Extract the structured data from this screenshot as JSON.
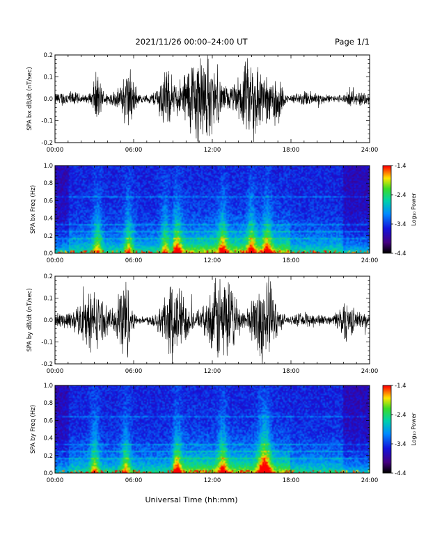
{
  "header": {
    "title": "2021/11/26  00:00–24:00 UT",
    "page": "Page 1/1"
  },
  "footer": {
    "xlabel": "Universal Time (hh:mm)"
  },
  "colors": {
    "trace": "#000000",
    "axis": "#000000",
    "background": "#ffffff"
  },
  "chart_data": [
    {
      "type": "line",
      "ylabel": "SPA bx dB/dt (nT/sec)",
      "xlim": [
        0,
        24
      ],
      "ylim": [
        -0.2,
        0.2
      ],
      "x_tick_labels": [
        "00:00",
        "06:00",
        "12:00",
        "18:00",
        "24:00"
      ],
      "y_tick_labels": [
        "0.2",
        "0.1",
        "0.0",
        "-0.1",
        "-0.2"
      ],
      "series": [
        {
          "x_unit": "hours UT",
          "bursts": [
            {
              "center": 3.2,
              "width": 0.35,
              "amp": 0.08
            },
            {
              "center": 5.6,
              "width": 0.5,
              "amp": 0.1
            },
            {
              "center": 8.4,
              "width": 0.5,
              "amp": 0.08
            },
            {
              "center": 11.0,
              "width": 1.4,
              "amp": 0.16
            },
            {
              "center": 15.0,
              "width": 1.2,
              "amp": 0.13
            },
            {
              "center": 16.9,
              "width": 0.4,
              "amp": 0.1
            }
          ],
          "background_amp": 0.02
        }
      ]
    },
    {
      "type": "heatmap",
      "ylabel": "SPA bx Freq (Hz)",
      "xlim": [
        0,
        24
      ],
      "ylim": [
        0.0,
        1.0
      ],
      "x_tick_labels": [
        "00:00",
        "06:00",
        "12:00",
        "18:00",
        "24:00"
      ],
      "y_tick_labels": [
        "1.0",
        "0.8",
        "0.6",
        "0.4",
        "0.2",
        "0.0"
      ],
      "colorbar": {
        "label": "Log₁₀ Power",
        "range": [
          -4.4,
          -1.4
        ],
        "tick_labels": [
          "-1.4",
          "-2.4",
          "-3.4",
          "-4.4"
        ]
      },
      "features": {
        "hot_times": [
          3.2,
          5.6,
          8.4,
          9.3,
          12.8,
          15.0,
          16.2
        ],
        "line_freqs": [
          0.64,
          0.32,
          0.24,
          0.16
        ]
      }
    },
    {
      "type": "line",
      "ylabel": "SPA by dB/dt (nT/sec)",
      "xlim": [
        0,
        24
      ],
      "ylim": [
        -0.2,
        0.2
      ],
      "x_tick_labels": [
        "00:00",
        "06:00",
        "12:00",
        "18:00",
        "24:00"
      ],
      "y_tick_labels": [
        "0.2",
        "0.1",
        "0.0",
        "-0.1",
        "-0.2"
      ],
      "series": [
        {
          "x_unit": "hours UT",
          "bursts": [
            {
              "center": 2.8,
              "width": 1.0,
              "amp": 0.1
            },
            {
              "center": 5.3,
              "width": 0.5,
              "amp": 0.15
            },
            {
              "center": 9.2,
              "width": 1.0,
              "amp": 0.12
            },
            {
              "center": 12.8,
              "width": 1.1,
              "amp": 0.15
            },
            {
              "center": 16.0,
              "width": 0.9,
              "amp": 0.14
            },
            {
              "center": 22.1,
              "width": 0.6,
              "amp": 0.06
            }
          ],
          "background_amp": 0.02
        }
      ]
    },
    {
      "type": "heatmap",
      "ylabel": "SPA by Freq (Hz)",
      "xlim": [
        0,
        24
      ],
      "ylim": [
        0.0,
        1.0
      ],
      "x_tick_labels": [
        "00:00",
        "06:00",
        "12:00",
        "18:00",
        "24:00"
      ],
      "y_tick_labels": [
        "1.0",
        "0.8",
        "0.6",
        "0.4",
        "0.2",
        "0.0"
      ],
      "colorbar": {
        "label": "Log₁₀ Power",
        "range": [
          -4.4,
          -1.4
        ],
        "tick_labels": [
          "-1.4",
          "-2.4",
          "-3.4",
          "-4.4"
        ]
      },
      "features": {
        "hot_times": [
          3.0,
          5.4,
          9.3,
          12.8,
          15.8,
          16.2
        ],
        "line_freqs": [
          0.64,
          0.32,
          0.24,
          0.16
        ]
      }
    }
  ]
}
